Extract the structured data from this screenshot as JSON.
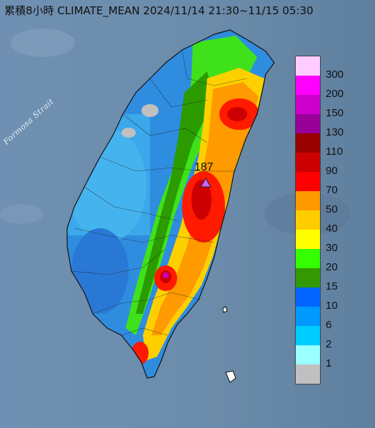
{
  "title": "累積8小時 CLIMATE_MEAN 2024/11/14 21:30~11/15 05:30",
  "strait_label": "Formosa Strait",
  "max_station": {
    "value": "187",
    "marker_icon": "triangle-marker-icon",
    "marker_color": "#cc66ff"
  },
  "legend": [
    {
      "label": "300",
      "color": "#ffccff"
    },
    {
      "label": "200",
      "color": "#ff00ff"
    },
    {
      "label": "150",
      "color": "#cc00cc"
    },
    {
      "label": "130",
      "color": "#990099"
    },
    {
      "label": "110",
      "color": "#990000"
    },
    {
      "label": "90",
      "color": "#cc0000"
    },
    {
      "label": "70",
      "color": "#ff0000"
    },
    {
      "label": "50",
      "color": "#ff9900"
    },
    {
      "label": "40",
      "color": "#ffcc00"
    },
    {
      "label": "30",
      "color": "#ffff00"
    },
    {
      "label": "20",
      "color": "#33ff00"
    },
    {
      "label": "15",
      "color": "#339900"
    },
    {
      "label": "10",
      "color": "#0066ff"
    },
    {
      "label": "6",
      "color": "#0099ff"
    },
    {
      "label": "2",
      "color": "#00ccff"
    },
    {
      "label": "1",
      "color": "#99ffff"
    },
    {
      "label": "",
      "color": "#c0c0c0"
    }
  ]
}
